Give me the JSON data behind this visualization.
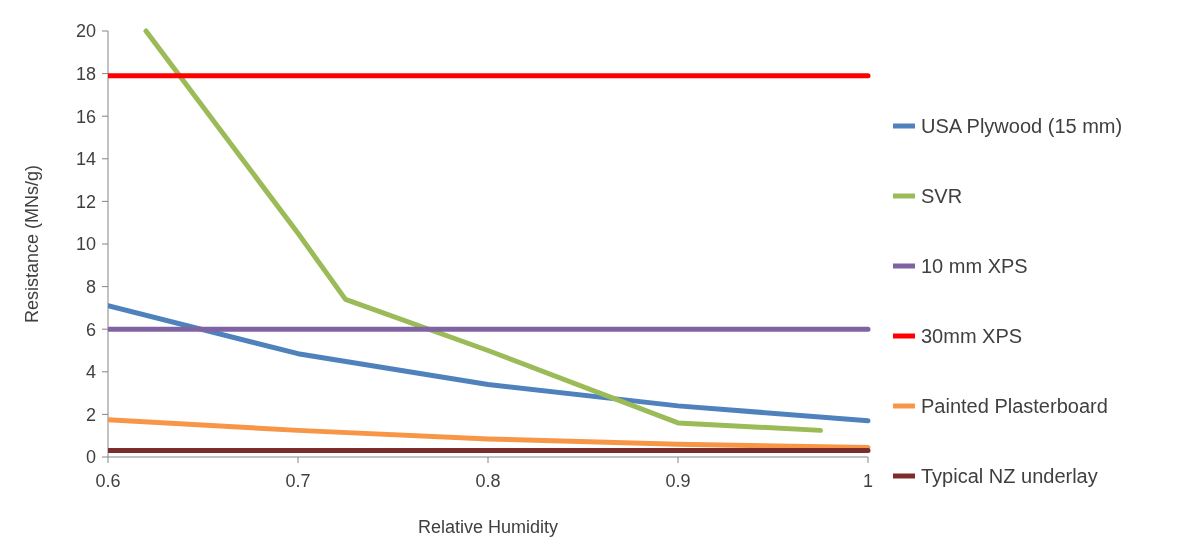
{
  "chart_data": {
    "type": "line",
    "xlabel": "Relative Humidity",
    "ylabel": "Resistance (MNs/g)",
    "xlim": [
      0.6,
      1
    ],
    "xticks": [
      0.6,
      0.7,
      0.8,
      0.9,
      1
    ],
    "ylim": [
      0,
      20
    ],
    "yticks": [
      0,
      2,
      4,
      6,
      8,
      10,
      12,
      14,
      16,
      18,
      20
    ],
    "grid": false,
    "legend": "right",
    "marker": "none",
    "line_style": "solid",
    "series": [
      {
        "name": "USA Plywood (15 mm)",
        "color": "#4f81bd",
        "x": [
          0.6,
          0.7,
          0.8,
          0.9,
          1
        ],
        "values": [
          7.1,
          4.85,
          3.4,
          2.4,
          1.7
        ]
      },
      {
        "name": "SVR",
        "color": "#9bbb59",
        "x": [
          0.62,
          0.7,
          0.725,
          0.8,
          0.9,
          0.975
        ],
        "values": [
          20,
          10.5,
          7.4,
          5.0,
          1.6,
          1.25
        ]
      },
      {
        "name": "10 mm XPS",
        "color": "#8064a2",
        "x": [
          0.6,
          1
        ],
        "values": [
          6,
          6
        ]
      },
      {
        "name": "30mm XPS",
        "color": "#ff0000",
        "x": [
          0.6,
          1
        ],
        "values": [
          17.9,
          17.9
        ]
      },
      {
        "name": "Painted Plasterboard",
        "color": "#f79646",
        "x": [
          0.6,
          0.7,
          0.8,
          0.9,
          1
        ],
        "values": [
          1.75,
          1.25,
          0.85,
          0.6,
          0.45
        ]
      },
      {
        "name": "Typical NZ underlay",
        "color": "#7b2c2c",
        "x": [
          0.6,
          1
        ],
        "values": [
          0.3,
          0.3
        ]
      }
    ]
  }
}
